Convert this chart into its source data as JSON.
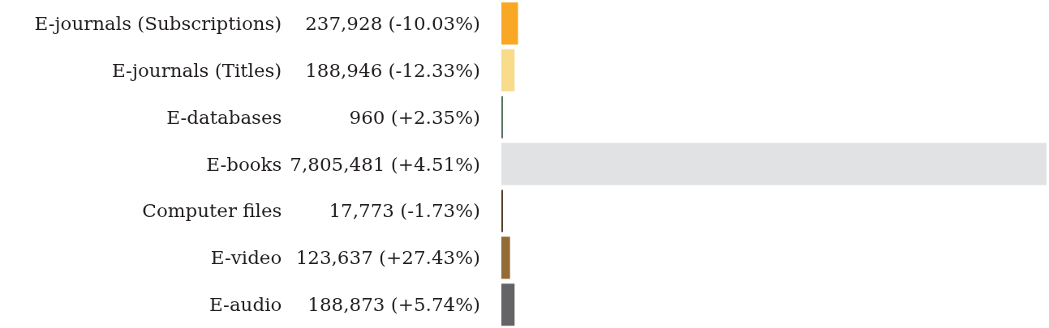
{
  "chart_data": {
    "type": "bar",
    "orientation": "horizontal",
    "categories": [
      "E-journals (Subscriptions)",
      "E-journals (Titles)",
      "E-databases",
      "E-books",
      "Computer files",
      "E-video",
      "E-audio"
    ],
    "values": [
      237928,
      188946,
      960,
      7805481,
      17773,
      123637,
      188873
    ],
    "value_labels": [
      "237,928 (-10.03%)",
      "188,946 (-12.33%)",
      "960 (+2.35%)",
      "7,805,481 (+4.51%)",
      "17,773 (-1.73%)",
      "123,637 (+27.43%)",
      "188,873 (+5.74%)"
    ],
    "colors": [
      "#f9a825",
      "#f8dc8a",
      "#587360",
      "#e1e2e4",
      "#55402b",
      "#936b34",
      "#646466"
    ],
    "tick_labels": "y",
    "grid": false,
    "legend": false
  }
}
